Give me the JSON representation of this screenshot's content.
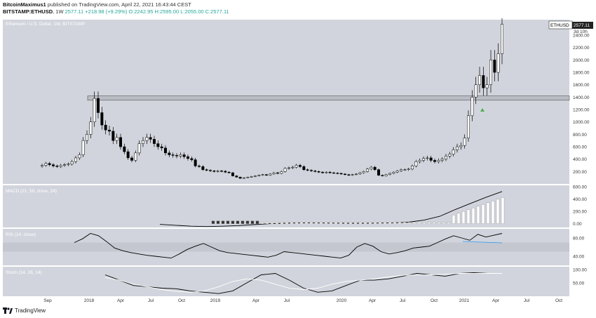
{
  "header": {
    "author": "BitcoinMaximus1",
    "published_text": "published on TradingView.com, April 22, 2021 16:43:44 CEST",
    "symbol": "BITSTAMP:ETHUSD",
    "interval": "1W",
    "last": "2577.11",
    "change": "+218.98 (+9.29%)",
    "ohlc": "O:2242.95  H:2595.00  L:2055.00  C:2577.11"
  },
  "footer": {
    "brand": "TradingView"
  },
  "colors": {
    "panel_bg": "#d1d4dc",
    "candle_up": "#ffffff",
    "candle_down": "#000000",
    "resistance_box": "#b0b3bb",
    "rsi_band": "#c4c7cf",
    "highlight_arrow": "#4caf50"
  },
  "chart_data": [
    {
      "type": "candlestick",
      "title": "Ethereum / U.S. Dollar, 1W, BITSTAMP",
      "symbol_label": "ETHUSD",
      "last_price": "2577.11",
      "countdown": "3d 10h",
      "ylim": [
        0,
        2650
      ],
      "y_ticks": [
        200,
        400,
        600,
        800,
        1000,
        1200,
        1400,
        1600,
        1800,
        2000,
        2200,
        2400
      ],
      "y_tick_labels": [
        "200.00",
        "400.00",
        "600.00",
        "800.00",
        "1000.00",
        "1200.00",
        "1400.00",
        "1600.00",
        "1800.00",
        "2000.00",
        "2200.00",
        "2400.00"
      ],
      "x_labels": [
        "Sep",
        "2018",
        "Apr",
        "Jul",
        "Oct",
        "2019",
        "Apr",
        "Jul",
        "2020",
        "Apr",
        "Jul",
        "Oct",
        "2021",
        "Apr",
        "Jul",
        "Oct"
      ],
      "resistance_zone": [
        1350,
        1420
      ],
      "close_series": [
        300,
        330,
        310,
        290,
        280,
        300,
        310,
        320,
        360,
        420,
        470,
        700,
        800,
        1000,
        1380,
        1150,
        950,
        870,
        850,
        700,
        750,
        600,
        520,
        420,
        380,
        500,
        650,
        700,
        750,
        720,
        650,
        600,
        580,
        500,
        470,
        460,
        450,
        470,
        440,
        410,
        390,
        290,
        280,
        230,
        220,
        210,
        200,
        210,
        205,
        190,
        180,
        130,
        110,
        90,
        100,
        110,
        120,
        130,
        140,
        150,
        140,
        160,
        180,
        170,
        200,
        250,
        260,
        270,
        300,
        280,
        230,
        220,
        210,
        200,
        190,
        180,
        190,
        180,
        175,
        170,
        160,
        150,
        140,
        150,
        160,
        180,
        200,
        240,
        270,
        230,
        140,
        130,
        150,
        170,
        190,
        210,
        230,
        230,
        240,
        290,
        360,
        380,
        410,
        420,
        380,
        360,
        380,
        400,
        450,
        480,
        550,
        600,
        620,
        740,
        1100,
        1400,
        1600,
        1750,
        1550,
        1600,
        2000,
        1800,
        2100,
        2577
      ],
      "series": [
        {
          "name": "ETHUSD",
          "values": "see close_series"
        }
      ]
    },
    {
      "type": "line",
      "title": "MACD (21, 50, close, 24)",
      "y_ticks": [
        0,
        200,
        400,
        600
      ],
      "y_tick_labels": [
        "0.00",
        "200.00",
        "400.00",
        "600.00"
      ],
      "ylim": [
        -60,
        620
      ],
      "series": [
        {
          "name": "MACD",
          "values": [
            -10,
            -25,
            -40,
            -45,
            -40,
            -30,
            -15,
            0,
            8,
            12,
            12,
            10,
            8,
            8,
            10,
            15,
            25,
            60,
            120,
            230,
            330,
            430,
            520
          ]
        }
      ]
    },
    {
      "type": "line",
      "title": "RSI (14, close)",
      "y_ticks": [
        40,
        80
      ],
      "y_tick_labels": [
        "40.00",
        "80.00"
      ],
      "ylim": [
        20,
        100
      ],
      "band": [
        50,
        70
      ],
      "series": [
        {
          "name": "RSI",
          "values": [
            70,
            78,
            90,
            85,
            72,
            58,
            52,
            48,
            45,
            42,
            40,
            38,
            36,
            45,
            55,
            62,
            68,
            60,
            52,
            48,
            46,
            44,
            42,
            40,
            38,
            42,
            50,
            48,
            46,
            44,
            42,
            40,
            38,
            36,
            42,
            60,
            68,
            62,
            50,
            45,
            48,
            52,
            58,
            60,
            62,
            70,
            78,
            85,
            80,
            75,
            88,
            82,
            86,
            90
          ]
        }
      ]
    },
    {
      "type": "line",
      "title": "Stoch (14, 28, 14)",
      "y_ticks": [
        50,
        100
      ],
      "y_tick_labels": [
        "50.00",
        "100.00"
      ],
      "ylim": [
        0,
        110
      ],
      "series": [
        {
          "name": "K",
          "values": [
            80,
            60,
            40,
            35,
            30,
            28,
            20,
            15,
            10,
            20,
            50,
            80,
            85,
            60,
            30,
            15,
            20,
            40,
            60,
            60,
            65,
            75,
            85,
            80,
            75,
            85,
            88,
            85,
            85
          ]
        },
        {
          "name": "D",
          "values": [
            70,
            60,
            45,
            35,
            25,
            18,
            15,
            20,
            35,
            55,
            65,
            60,
            45,
            30,
            25,
            30,
            45,
            55,
            60,
            65,
            72,
            78,
            80,
            80,
            82,
            85,
            85,
            85,
            85
          ]
        }
      ]
    }
  ]
}
